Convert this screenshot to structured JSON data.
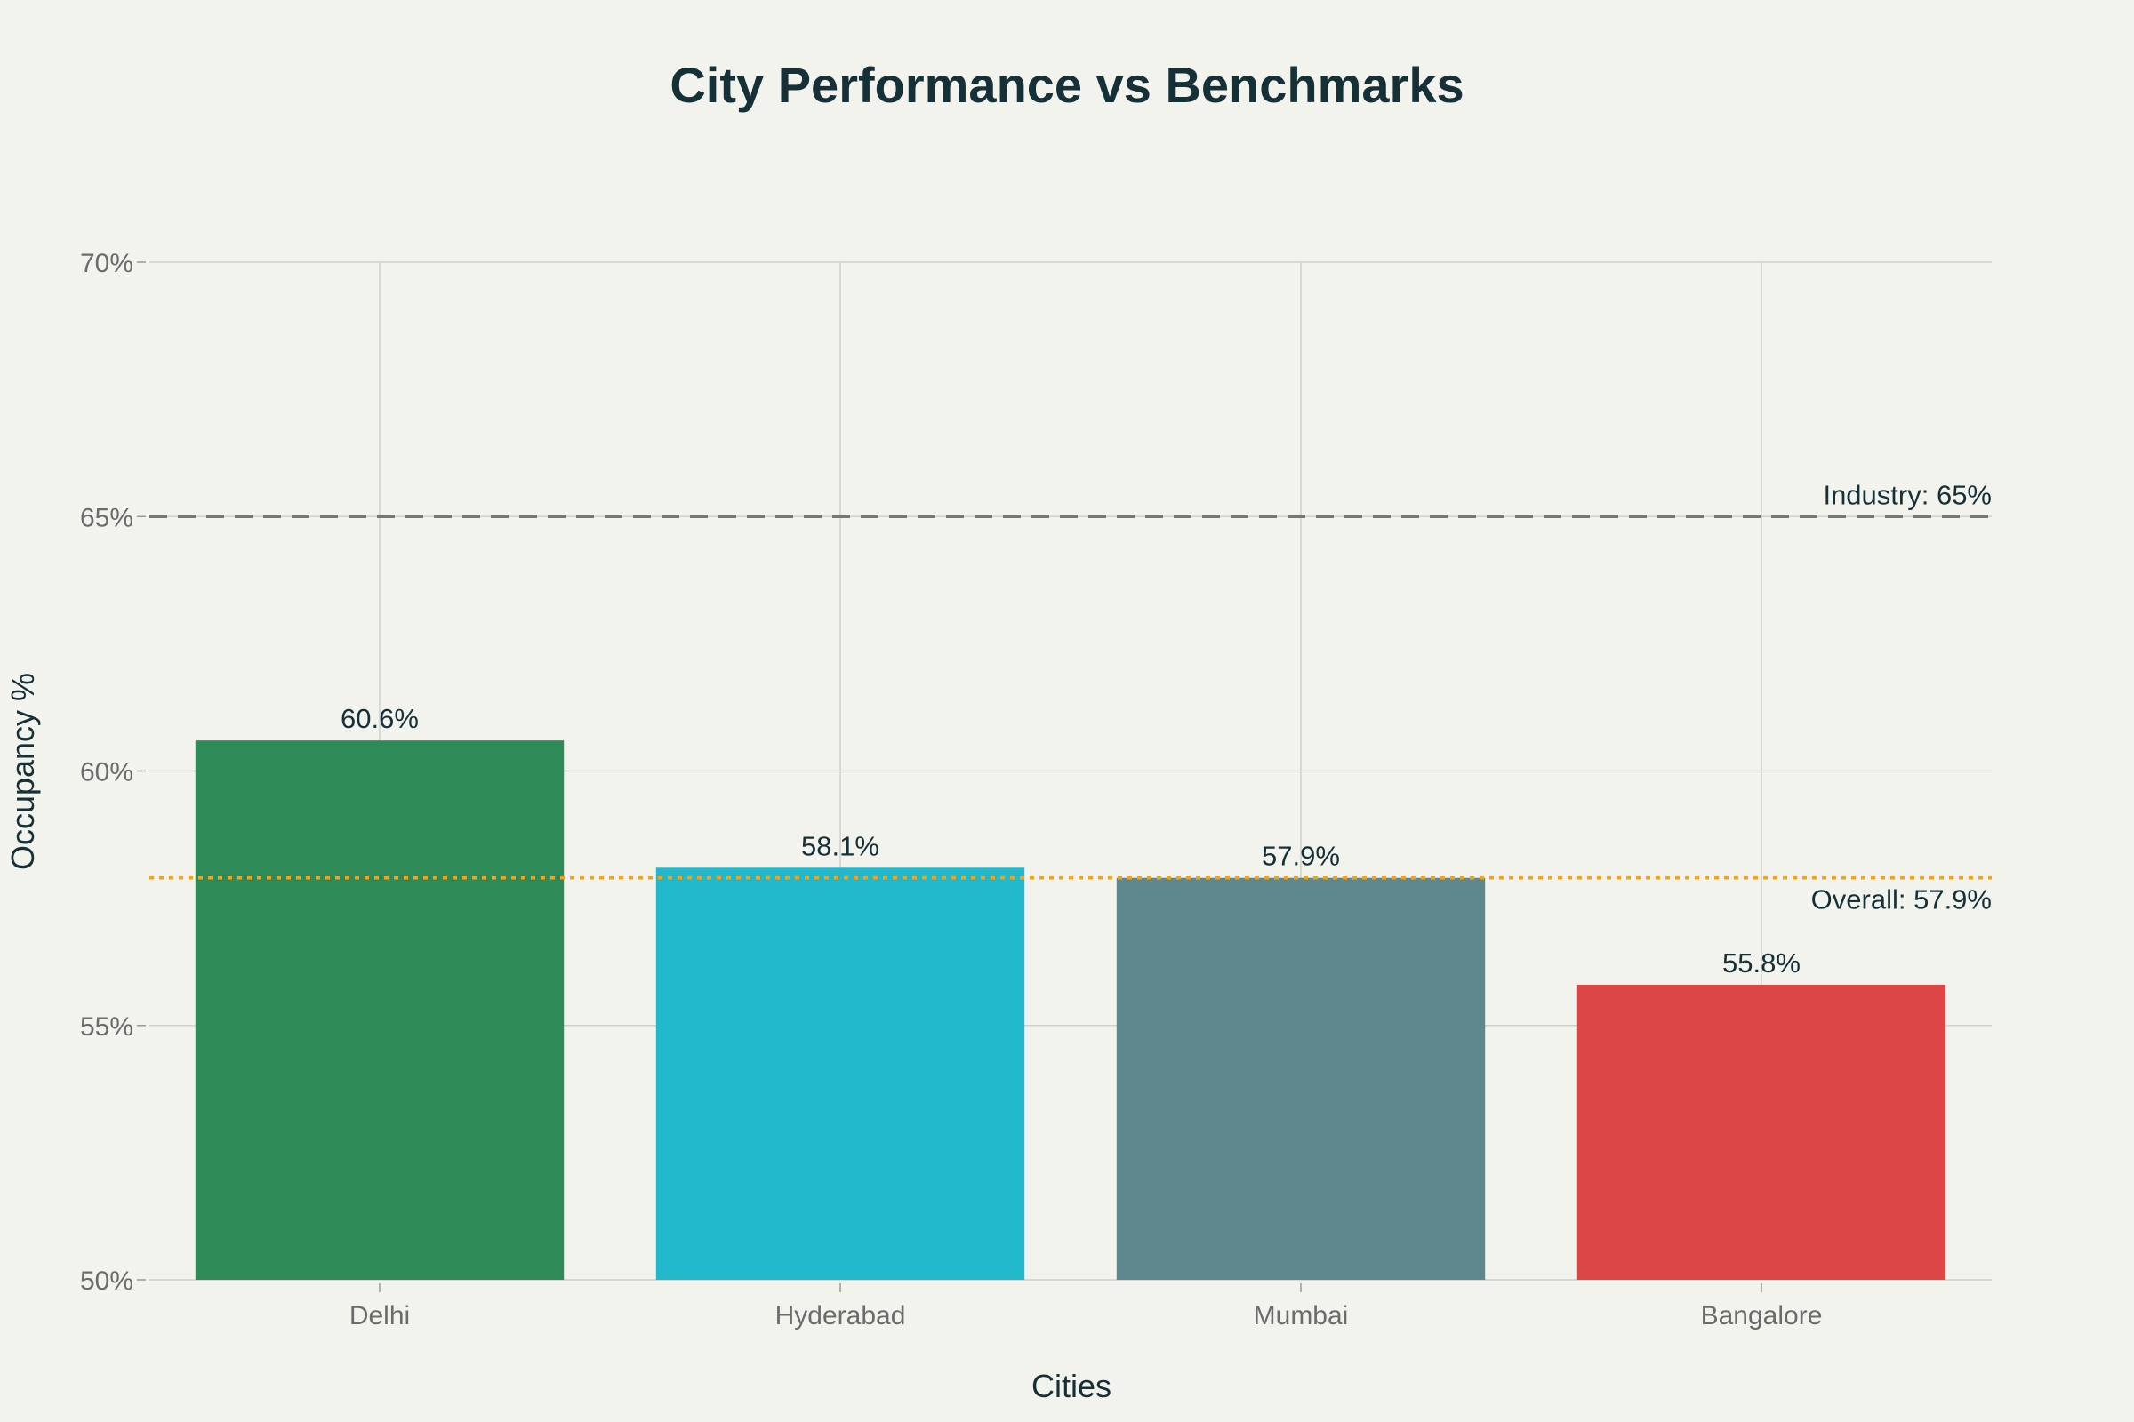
{
  "chart_data": {
    "type": "bar",
    "title": "City Performance vs Benchmarks",
    "xlabel": "Cities",
    "ylabel": "Occupancy %",
    "categories": [
      "Delhi",
      "Hyderabad",
      "Mumbai",
      "Bangalore"
    ],
    "values": [
      60.6,
      58.1,
      57.9,
      55.8
    ],
    "value_labels": [
      "60.6%",
      "58.1%",
      "57.9%",
      "55.8%"
    ],
    "bar_colors": [
      "#2e8b57",
      "#21b8cc",
      "#5e888d",
      "#dc4647"
    ],
    "ylim": [
      50,
      70
    ],
    "yticks": [
      50,
      55,
      60,
      65,
      70
    ],
    "ytick_labels": [
      "50%",
      "55%",
      "60%",
      "65%",
      "70%"
    ],
    "grid": true,
    "reference_lines": [
      {
        "label": "Industry: 65%",
        "value": 65,
        "style": "dashed",
        "color": "#777777"
      },
      {
        "label": "Overall: 57.9%",
        "value": 57.9,
        "style": "dotted",
        "color": "#f5a11c"
      }
    ]
  }
}
